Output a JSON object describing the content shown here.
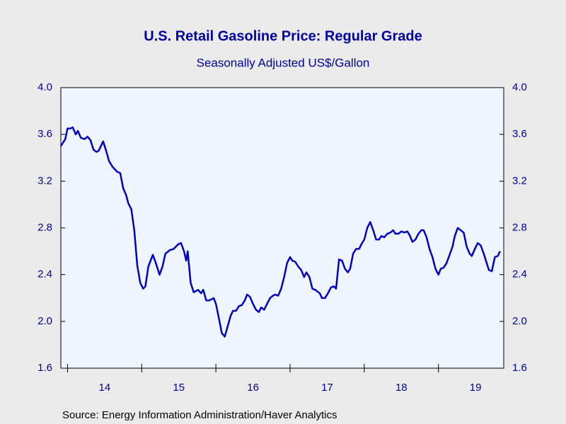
{
  "chart_data": {
    "type": "line",
    "title": "U.S. Retail Gasoline Price: Regular Grade",
    "subtitle": "Seasonally Adjusted US$/Gallon",
    "source": "Source:  Energy Information Administration/Haver Analytics",
    "x": [
      2013.91,
      2013.97,
      2014.0,
      2014.04,
      2014.07,
      2014.11,
      2014.14,
      2014.18,
      2014.23,
      2014.27,
      2014.31,
      2014.35,
      2014.39,
      2014.42,
      2014.48,
      2014.52,
      2014.56,
      2014.61,
      2014.67,
      2014.71,
      2014.75,
      2014.79,
      2014.82,
      2014.86,
      2014.9,
      2014.94,
      2014.98,
      2015.02,
      2015.05,
      2015.09,
      2015.15,
      2015.19,
      2015.24,
      2015.28,
      2015.32,
      2015.38,
      2015.43,
      2015.49,
      2015.53,
      2015.57,
      2015.6,
      2015.62,
      2015.66,
      2015.7,
      2015.76,
      2015.8,
      2015.83,
      2015.87,
      2015.91,
      2015.97,
      2016.0,
      2016.04,
      2016.08,
      2016.12,
      2016.16,
      2016.2,
      2016.23,
      2016.27,
      2016.31,
      2016.35,
      2016.39,
      2016.42,
      2016.46,
      2016.5,
      2016.54,
      2016.58,
      2016.61,
      2016.65,
      2016.69,
      2016.73,
      2016.77,
      2016.8,
      2016.84,
      2016.88,
      2016.92,
      2016.96,
      2017.0,
      2017.03,
      2017.07,
      2017.11,
      2017.15,
      2017.19,
      2017.22,
      2017.26,
      2017.3,
      2017.34,
      2017.4,
      2017.43,
      2017.47,
      2017.51,
      2017.55,
      2017.59,
      2017.62,
      2017.66,
      2017.7,
      2017.74,
      2017.78,
      2017.81,
      2017.85,
      2017.89,
      2017.93,
      2017.97,
      2018.0,
      2018.04,
      2018.08,
      2018.12,
      2018.16,
      2018.2,
      2018.23,
      2018.27,
      2018.31,
      2018.35,
      2018.39,
      2018.42,
      2018.46,
      2018.5,
      2018.54,
      2018.58,
      2018.61,
      2018.65,
      2018.69,
      2018.73,
      2018.77,
      2018.8,
      2018.84,
      2018.88,
      2018.92,
      2018.96,
      2019.0,
      2019.03,
      2019.07,
      2019.11,
      2019.15,
      2019.19,
      2019.22,
      2019.26,
      2019.3,
      2019.34,
      2019.38,
      2019.42,
      2019.45,
      2019.49,
      2019.53,
      2019.57,
      2019.61,
      2019.64,
      2019.68,
      2019.72,
      2019.76,
      2019.8,
      2019.83
    ],
    "series": [
      {
        "name": "Regular Grade",
        "color": "#0000c0",
        "values": [
          3.5,
          3.56,
          3.65,
          3.65,
          3.66,
          3.6,
          3.63,
          3.57,
          3.56,
          3.58,
          3.55,
          3.47,
          3.45,
          3.46,
          3.54,
          3.46,
          3.37,
          3.32,
          3.28,
          3.27,
          3.14,
          3.08,
          3.01,
          2.96,
          2.78,
          2.48,
          2.33,
          2.28,
          2.3,
          2.47,
          2.57,
          2.5,
          2.4,
          2.47,
          2.58,
          2.61,
          2.62,
          2.66,
          2.67,
          2.6,
          2.52,
          2.6,
          2.33,
          2.25,
          2.27,
          2.24,
          2.27,
          2.18,
          2.18,
          2.2,
          2.15,
          2.03,
          1.9,
          1.87,
          1.96,
          2.05,
          2.09,
          2.09,
          2.13,
          2.14,
          2.18,
          2.23,
          2.21,
          2.15,
          2.1,
          2.08,
          2.12,
          2.1,
          2.15,
          2.2,
          2.22,
          2.23,
          2.22,
          2.28,
          2.38,
          2.5,
          2.55,
          2.52,
          2.51,
          2.47,
          2.44,
          2.38,
          2.42,
          2.38,
          2.28,
          2.27,
          2.24,
          2.2,
          2.2,
          2.24,
          2.29,
          2.3,
          2.28,
          2.53,
          2.52,
          2.45,
          2.42,
          2.45,
          2.58,
          2.62,
          2.62,
          2.67,
          2.7,
          2.8,
          2.85,
          2.78,
          2.7,
          2.7,
          2.73,
          2.72,
          2.75,
          2.76,
          2.78,
          2.75,
          2.75,
          2.77,
          2.76,
          2.77,
          2.74,
          2.68,
          2.7,
          2.75,
          2.78,
          2.78,
          2.72,
          2.62,
          2.55,
          2.45,
          2.4,
          2.45,
          2.46,
          2.5,
          2.57,
          2.64,
          2.73,
          2.8,
          2.78,
          2.76,
          2.64,
          2.58,
          2.56,
          2.62,
          2.67,
          2.65,
          2.58,
          2.52,
          2.44,
          2.43,
          2.55,
          2.56,
          2.6
        ]
      }
    ],
    "xlim": [
      2013.91,
      2019.88
    ],
    "xticks": [
      {
        "value": 2014,
        "label": "14"
      },
      {
        "value": 2015,
        "label": "15"
      },
      {
        "value": 2016,
        "label": "16"
      },
      {
        "value": 2017,
        "label": "17"
      },
      {
        "value": 2018,
        "label": "18"
      },
      {
        "value": 2019,
        "label": "19"
      }
    ],
    "ylim": [
      1.6,
      4.0
    ],
    "yticks": [
      {
        "value": 1.6,
        "label": "1.6"
      },
      {
        "value": 2.0,
        "label": "2.0"
      },
      {
        "value": 2.4,
        "label": "2.4"
      },
      {
        "value": 2.8,
        "label": "2.8"
      },
      {
        "value": 3.2,
        "label": "3.2"
      },
      {
        "value": 3.6,
        "label": "3.6"
      },
      {
        "value": 4.0,
        "label": "4.0"
      }
    ],
    "y2lim": [
      1.6,
      4.0
    ],
    "y2ticks": [
      {
        "value": 1.6,
        "label": "1.6"
      },
      {
        "value": 2.0,
        "label": "2.0"
      },
      {
        "value": 2.4,
        "label": "2.4"
      },
      {
        "value": 2.8,
        "label": "2.8"
      },
      {
        "value": 3.2,
        "label": "3.2"
      },
      {
        "value": 3.6,
        "label": "3.6"
      },
      {
        "value": 4.0,
        "label": "4.0"
      }
    ],
    "grid": false
  }
}
